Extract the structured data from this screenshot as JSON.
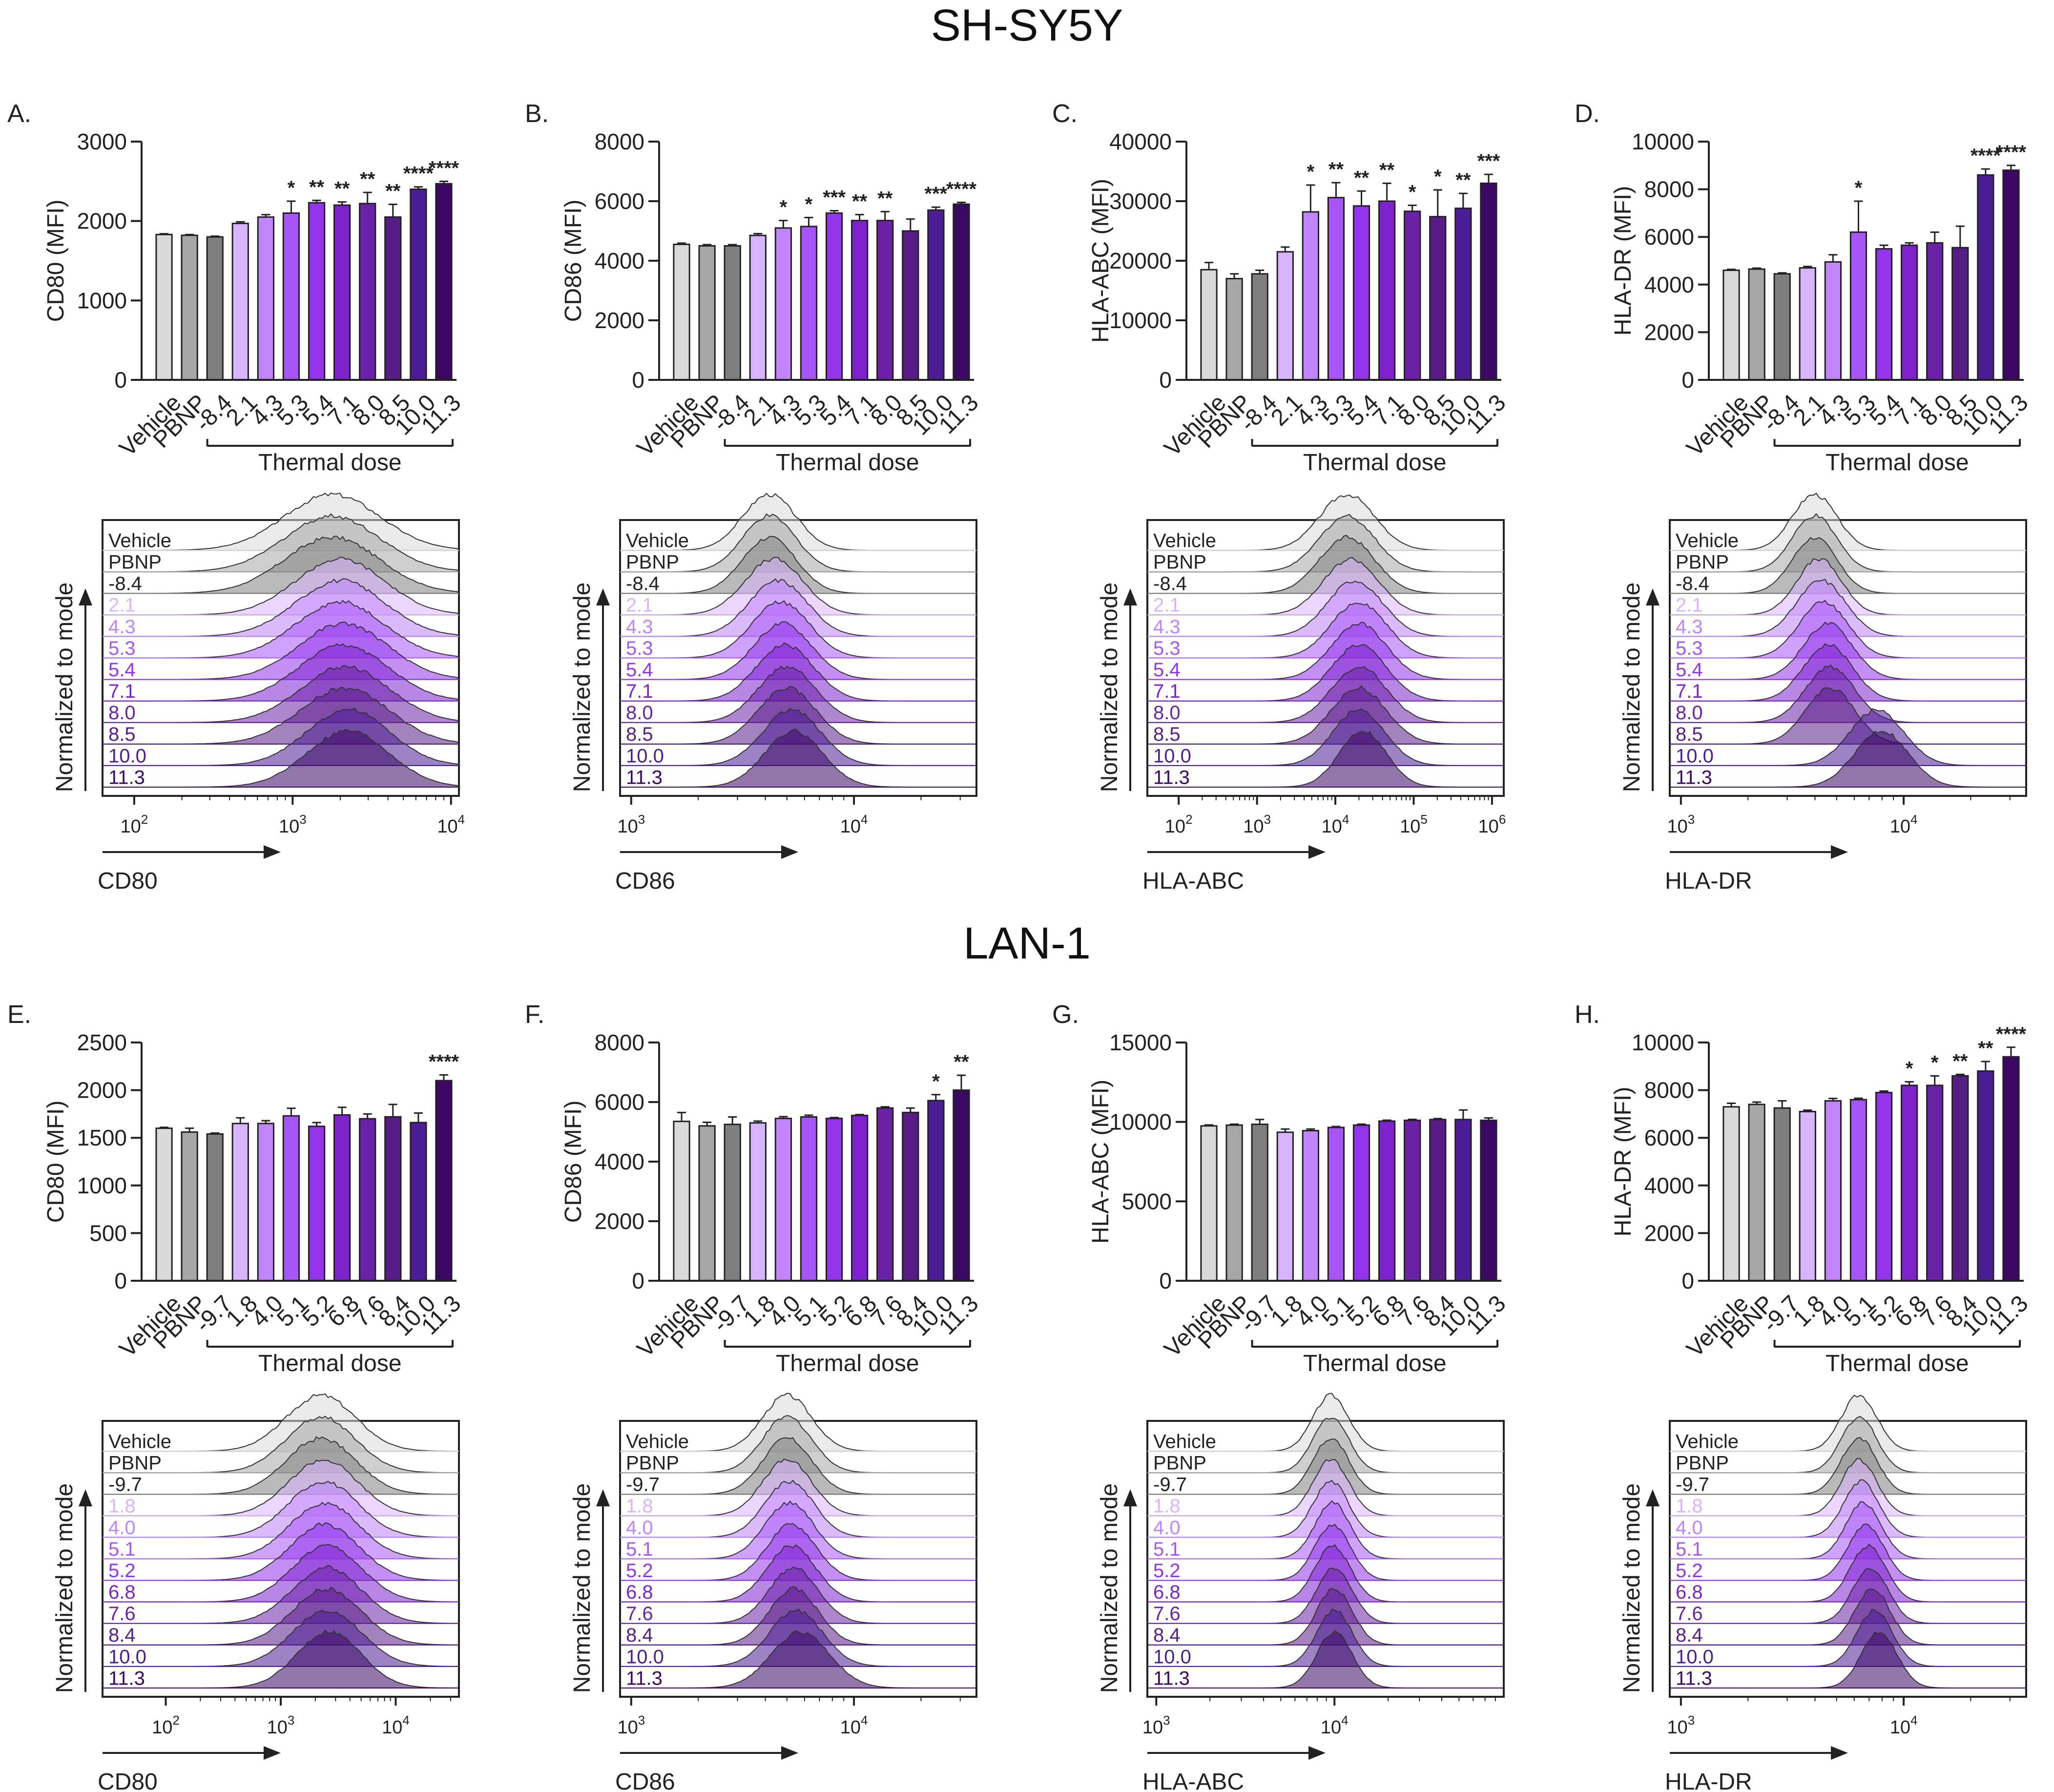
{
  "figure": {
    "title_top": "SH-SY5Y",
    "title_bottom": "LAN-1",
    "bar_colors": [
      "#d9d9d9",
      "#a6a6a6",
      "#7f7f7f",
      "#d8b4fe",
      "#c084fc",
      "#a855f7",
      "#9333ea",
      "#7e22ce",
      "#6b21a8",
      "#581c87",
      "#4c1d95",
      "#3b0764",
      "#2e1065"
    ]
  },
  "chart_data": [
    {
      "panel": "A.",
      "cell_line": "SH-SY5Y",
      "type": "bar",
      "categories": [
        "Vehicle",
        "PBNP",
        "-8.4",
        "2.1",
        "4.3",
        "5.3",
        "5.4",
        "7.1",
        "8.0",
        "8.5",
        "10.0",
        "11.3"
      ],
      "values": [
        1830,
        1820,
        1800,
        1970,
        2050,
        2100,
        2230,
        2200,
        2220,
        2050,
        2400,
        2470
      ],
      "errors": [
        10,
        10,
        10,
        20,
        30,
        150,
        30,
        40,
        140,
        160,
        30,
        30
      ],
      "significance": [
        "",
        "",
        "",
        "",
        "",
        "*",
        "**",
        "**",
        "**",
        "**",
        "****",
        "****"
      ],
      "ylabel": "CD80 (MFI)",
      "ylim": [
        0,
        3000
      ],
      "yticks": [
        "0",
        "1000",
        "2000",
        "3000"
      ],
      "xlabel": "Thermal dose",
      "histogram": {
        "ylabel": "Normalized to mode",
        "xlabel": "CD80",
        "labels": [
          "Vehicle",
          "PBNP",
          "-8.4",
          "2.1",
          "4.3",
          "5.3",
          "5.4",
          "7.1",
          "8.0",
          "8.5",
          "10.0",
          "11.3"
        ],
        "xticks": [
          {
            "b": "10",
            "e": "2"
          },
          {
            "b": "10",
            "e": "3"
          },
          {
            "b": "10",
            "e": "4"
          }
        ],
        "xlog_range": [
          1.8,
          4.05
        ],
        "tick_values": [
          2,
          3,
          4
        ],
        "peaks": [
          3.25,
          3.25,
          3.25,
          3.3,
          3.3,
          3.3,
          3.32,
          3.32,
          3.33,
          3.33,
          3.35,
          3.35
        ],
        "widths": [
          0.3,
          0.3,
          0.3,
          0.28,
          0.28,
          0.28,
          0.28,
          0.28,
          0.28,
          0.28,
          0.26,
          0.26
        ]
      }
    },
    {
      "panel": "B.",
      "cell_line": "SH-SY5Y",
      "type": "bar",
      "categories": [
        "Vehicle",
        "PBNP",
        "-8.4",
        "2.1",
        "4.3",
        "5.3",
        "5.4",
        "7.1",
        "8.0",
        "8.5",
        "10.0",
        "11.3"
      ],
      "values": [
        4550,
        4500,
        4500,
        4850,
        5100,
        5150,
        5600,
        5350,
        5350,
        5000,
        5700,
        5900
      ],
      "errors": [
        40,
        40,
        40,
        60,
        250,
        300,
        80,
        200,
        300,
        400,
        100,
        60
      ],
      "significance": [
        "",
        "",
        "",
        "",
        "*",
        "*",
        "***",
        "**",
        "**",
        "",
        "***",
        "****"
      ],
      "ylabel": "CD86 (MFI)",
      "ylim": [
        0,
        8000
      ],
      "yticks": [
        "0",
        "2000",
        "4000",
        "6000",
        "8000"
      ],
      "xlabel": "Thermal dose",
      "histogram": {
        "ylabel": "Normalized to mode",
        "xlabel": "CD86",
        "labels": [
          "Vehicle",
          "PBNP",
          "-8.4",
          "2.1",
          "4.3",
          "5.3",
          "5.4",
          "7.1",
          "8.0",
          "8.5",
          "10.0",
          "11.3"
        ],
        "xticks": [
          {
            "b": "10",
            "e": "3"
          },
          {
            "b": "10",
            "e": "4"
          }
        ],
        "xlog_range": [
          2.95,
          4.55
        ],
        "tick_values": [
          3,
          4
        ],
        "peaks": [
          3.62,
          3.62,
          3.62,
          3.64,
          3.66,
          3.67,
          3.68,
          3.69,
          3.7,
          3.7,
          3.72,
          3.73
        ],
        "widths": [
          0.12,
          0.12,
          0.12,
          0.13,
          0.13,
          0.13,
          0.13,
          0.13,
          0.13,
          0.13,
          0.13,
          0.13
        ]
      }
    },
    {
      "panel": "C.",
      "cell_line": "SH-SY5Y",
      "type": "bar",
      "categories": [
        "Vehicle",
        "PBNP",
        "-8.4",
        "2.1",
        "4.3",
        "5.3",
        "5.4",
        "7.1",
        "8.0",
        "8.5",
        "10.0",
        "11.3"
      ],
      "values": [
        18500,
        17000,
        17800,
        21500,
        28200,
        30600,
        29200,
        30000,
        28300,
        27400,
        28800,
        33000
      ],
      "errors": [
        1200,
        800,
        600,
        800,
        4500,
        2500,
        2500,
        3000,
        1000,
        4500,
        2500,
        1500
      ],
      "significance": [
        "",
        "",
        "",
        "",
        "*",
        "**",
        "**",
        "**",
        "*",
        "*",
        "**",
        "***"
      ],
      "ylabel": "HLA-ABC (MFI)",
      "ylim": [
        0,
        40000
      ],
      "yticks": [
        "0",
        "10000",
        "20000",
        "30000",
        "40000"
      ],
      "xlabel": "Thermal dose",
      "histogram": {
        "ylabel": "Normalized to mode",
        "xlabel": "HLA-ABC",
        "labels": [
          "Vehicle",
          "PBNP",
          "-8.4",
          "2.1",
          "4.3",
          "5.3",
          "5.4",
          "7.1",
          "8.0",
          "8.5",
          "10.0",
          "11.3"
        ],
        "xticks": [
          {
            "b": "10",
            "e": "2"
          },
          {
            "b": "10",
            "e": "3"
          },
          {
            "b": "10",
            "e": "4"
          },
          {
            "b": "10",
            "e": "5"
          },
          {
            "b": "10",
            "e": "6"
          }
        ],
        "xlog_range": [
          1.6,
          6.15
        ],
        "tick_values": [
          2,
          3,
          4,
          5,
          6
        ],
        "peaks": [
          4.15,
          4.15,
          4.15,
          4.2,
          4.25,
          4.3,
          4.3,
          4.3,
          4.3,
          4.3,
          4.3,
          4.35
        ],
        "widths": [
          0.35,
          0.35,
          0.35,
          0.35,
          0.35,
          0.35,
          0.35,
          0.35,
          0.35,
          0.35,
          0.33,
          0.3
        ]
      }
    },
    {
      "panel": "D.",
      "cell_line": "SH-SY5Y",
      "type": "bar",
      "categories": [
        "Vehicle",
        "PBNP",
        "-8.4",
        "2.1",
        "4.3",
        "5.3",
        "5.4",
        "7.1",
        "8.0",
        "8.5",
        "10.0",
        "11.3"
      ],
      "values": [
        4600,
        4650,
        4450,
        4700,
        4950,
        6200,
        5500,
        5650,
        5750,
        5550,
        8600,
        8800
      ],
      "errors": [
        40,
        40,
        40,
        60,
        300,
        1300,
        150,
        100,
        450,
        900,
        250,
        200
      ],
      "significance": [
        "",
        "",
        "",
        "",
        "",
        "*",
        "",
        "",
        "",
        "",
        "****",
        "****"
      ],
      "ylabel": "HLA-DR (MFI)",
      "ylim": [
        0,
        10000
      ],
      "yticks": [
        "0",
        "2000",
        "4000",
        "6000",
        "8000",
        "10000"
      ],
      "xlabel": "Thermal dose",
      "histogram": {
        "ylabel": "Normalized to mode",
        "xlabel": "HLA-DR",
        "labels": [
          "Vehicle",
          "PBNP",
          "-8.4",
          "2.1",
          "4.3",
          "5.3",
          "5.4",
          "7.1",
          "8.0",
          "8.5",
          "10.0",
          "11.3"
        ],
        "xticks": [
          {
            "b": "10",
            "e": "3"
          },
          {
            "b": "10",
            "e": "4"
          }
        ],
        "xlog_range": [
          2.95,
          4.55
        ],
        "tick_values": [
          3,
          4
        ],
        "peaks": [
          3.6,
          3.6,
          3.6,
          3.62,
          3.63,
          3.64,
          3.66,
          3.66,
          3.67,
          3.67,
          3.88,
          3.9
        ],
        "widths": [
          0.1,
          0.1,
          0.1,
          0.1,
          0.11,
          0.11,
          0.11,
          0.11,
          0.11,
          0.11,
          0.12,
          0.12
        ]
      }
    },
    {
      "panel": "E.",
      "cell_line": "LAN-1",
      "type": "bar",
      "categories": [
        "Vehicle",
        "PBNP",
        "-9.7",
        "1.8",
        "4.0",
        "5.1",
        "5.2",
        "6.8",
        "7.6",
        "8.4",
        "10.0",
        "11.3"
      ],
      "values": [
        1600,
        1560,
        1540,
        1650,
        1650,
        1730,
        1620,
        1740,
        1700,
        1720,
        1660,
        2100
      ],
      "errors": [
        10,
        40,
        10,
        60,
        30,
        80,
        40,
        80,
        50,
        130,
        100,
        60
      ],
      "significance": [
        "",
        "",
        "",
        "",
        "",
        "",
        "",
        "",
        "",
        "",
        "",
        "****"
      ],
      "ylabel": "CD80 (MFI)",
      "ylim": [
        0,
        2500
      ],
      "yticks": [
        "0",
        "500",
        "1000",
        "1500",
        "2000",
        "2500"
      ],
      "xlabel": "Thermal dose",
      "histogram": {
        "ylabel": "Normalized to mode",
        "xlabel": "CD80",
        "labels": [
          "Vehicle",
          "PBNP",
          "-9.7",
          "1.8",
          "4.0",
          "5.1",
          "5.2",
          "6.8",
          "7.6",
          "8.4",
          "10.0",
          "11.3"
        ],
        "xticks": [
          {
            "b": "10",
            "e": "2"
          },
          {
            "b": "10",
            "e": "3"
          },
          {
            "b": "10",
            "e": "4"
          }
        ],
        "xlog_range": [
          1.45,
          4.55
        ],
        "tick_values": [
          2,
          3,
          4
        ],
        "peaks": [
          3.35,
          3.35,
          3.35,
          3.37,
          3.37,
          3.38,
          3.38,
          3.4,
          3.4,
          3.4,
          3.4,
          3.42
        ],
        "widths": [
          0.3,
          0.3,
          0.3,
          0.3,
          0.3,
          0.3,
          0.3,
          0.3,
          0.3,
          0.3,
          0.3,
          0.28
        ]
      }
    },
    {
      "panel": "F.",
      "cell_line": "LAN-1",
      "type": "bar",
      "categories": [
        "Vehicle",
        "PBNP",
        "-9.7",
        "1.8",
        "4.0",
        "5.1",
        "5.2",
        "6.8",
        "7.6",
        "8.4",
        "10.0",
        "11.3"
      ],
      "values": [
        5350,
        5200,
        5250,
        5300,
        5450,
        5500,
        5450,
        5550,
        5800,
        5650,
        6050,
        6400
      ],
      "errors": [
        300,
        120,
        250,
        60,
        60,
        60,
        30,
        30,
        40,
        150,
        200,
        500
      ],
      "significance": [
        "",
        "",
        "",
        "",
        "",
        "",
        "",
        "",
        "",
        "",
        "*",
        "**"
      ],
      "ylabel": "CD86 (MFI)",
      "ylim": [
        0,
        8000
      ],
      "yticks": [
        "0",
        "2000",
        "4000",
        "6000",
        "8000"
      ],
      "xlabel": "Thermal dose",
      "histogram": {
        "ylabel": "Normalized to mode",
        "xlabel": "CD86",
        "labels": [
          "Vehicle",
          "PBNP",
          "-9.7",
          "1.8",
          "4.0",
          "5.1",
          "5.2",
          "6.8",
          "7.6",
          "8.4",
          "10.0",
          "11.3"
        ],
        "xticks": [
          {
            "b": "10",
            "e": "3"
          },
          {
            "b": "10",
            "e": "4"
          }
        ],
        "xlog_range": [
          2.95,
          4.55
        ],
        "tick_values": [
          3,
          4
        ],
        "peaks": [
          3.7,
          3.7,
          3.7,
          3.7,
          3.71,
          3.71,
          3.72,
          3.72,
          3.73,
          3.73,
          3.74,
          3.76
        ],
        "widths": [
          0.11,
          0.11,
          0.11,
          0.11,
          0.11,
          0.11,
          0.11,
          0.11,
          0.11,
          0.11,
          0.12,
          0.13
        ]
      }
    },
    {
      "panel": "G.",
      "cell_line": "LAN-1",
      "type": "bar",
      "categories": [
        "Vehicle",
        "PBNP",
        "-9.7",
        "1.8",
        "4.0",
        "5.1",
        "5.2",
        "6.8",
        "7.6",
        "8.4",
        "10.0",
        "11.3"
      ],
      "values": [
        9750,
        9800,
        9850,
        9350,
        9450,
        9650,
        9800,
        10050,
        10100,
        10150,
        10150,
        10100
      ],
      "errors": [
        60,
        60,
        300,
        200,
        100,
        60,
        60,
        60,
        60,
        60,
        600,
        150
      ],
      "significance": [
        "",
        "",
        "",
        "",
        "",
        "",
        "",
        "",
        "",
        "",
        "",
        ""
      ],
      "ylabel": "HLA-ABC (MFI)",
      "ylim": [
        0,
        15000
      ],
      "yticks": [
        "0",
        "5000",
        "10000",
        "15000"
      ],
      "xlabel": "Thermal dose",
      "histogram": {
        "ylabel": "Normalized to mode",
        "xlabel": "HLA-ABC",
        "labels": [
          "Vehicle",
          "PBNP",
          "-9.7",
          "1.8",
          "4.0",
          "5.1",
          "5.2",
          "6.8",
          "7.6",
          "8.4",
          "10.0",
          "11.3"
        ],
        "xticks": [
          {
            "b": "10",
            "e": "3"
          },
          {
            "b": "10",
            "e": "4"
          }
        ],
        "xlog_range": [
          2.95,
          4.95
        ],
        "tick_values": [
          3,
          4
        ],
        "peaks": [
          3.98,
          3.98,
          3.98,
          3.98,
          3.98,
          3.99,
          3.99,
          3.99,
          4.0,
          4.0,
          4.0,
          4.0
        ],
        "widths": [
          0.1,
          0.1,
          0.1,
          0.1,
          0.1,
          0.1,
          0.1,
          0.1,
          0.1,
          0.1,
          0.1,
          0.1
        ]
      }
    },
    {
      "panel": "H.",
      "cell_line": "LAN-1",
      "type": "bar",
      "categories": [
        "Vehicle",
        "PBNP",
        "-9.7",
        "1.8",
        "4.0",
        "5.1",
        "5.2",
        "6.8",
        "7.6",
        "8.4",
        "10.0",
        "11.3"
      ],
      "values": [
        7300,
        7400,
        7250,
        7100,
        7550,
        7600,
        7900,
        8200,
        8200,
        8600,
        8800,
        9400
      ],
      "errors": [
        150,
        100,
        300,
        60,
        100,
        60,
        60,
        150,
        400,
        60,
        400,
        400
      ],
      "significance": [
        "",
        "",
        "",
        "",
        "",
        "",
        "",
        "*",
        "*",
        "**",
        "**",
        "****"
      ],
      "ylabel": "HLA-DR (MFI)",
      "ylim": [
        0,
        10000
      ],
      "yticks": [
        "0",
        "2000",
        "4000",
        "6000",
        "8000",
        "10000"
      ],
      "xlabel": "Thermal dose",
      "histogram": {
        "ylabel": "Normalized to mode",
        "xlabel": "HLA-DR",
        "labels": [
          "Vehicle",
          "PBNP",
          "-9.7",
          "1.8",
          "4.0",
          "5.1",
          "5.2",
          "6.8",
          "7.6",
          "8.4",
          "10.0",
          "11.3"
        ],
        "xticks": [
          {
            "b": "10",
            "e": "3"
          },
          {
            "b": "10",
            "e": "4"
          }
        ],
        "xlog_range": [
          2.95,
          4.55
        ],
        "tick_values": [
          3,
          4
        ],
        "peaks": [
          3.8,
          3.8,
          3.8,
          3.8,
          3.81,
          3.82,
          3.83,
          3.84,
          3.85,
          3.86,
          3.87,
          3.89
        ],
        "widths": [
          0.08,
          0.08,
          0.08,
          0.08,
          0.08,
          0.08,
          0.08,
          0.08,
          0.08,
          0.08,
          0.08,
          0.08
        ]
      }
    }
  ]
}
